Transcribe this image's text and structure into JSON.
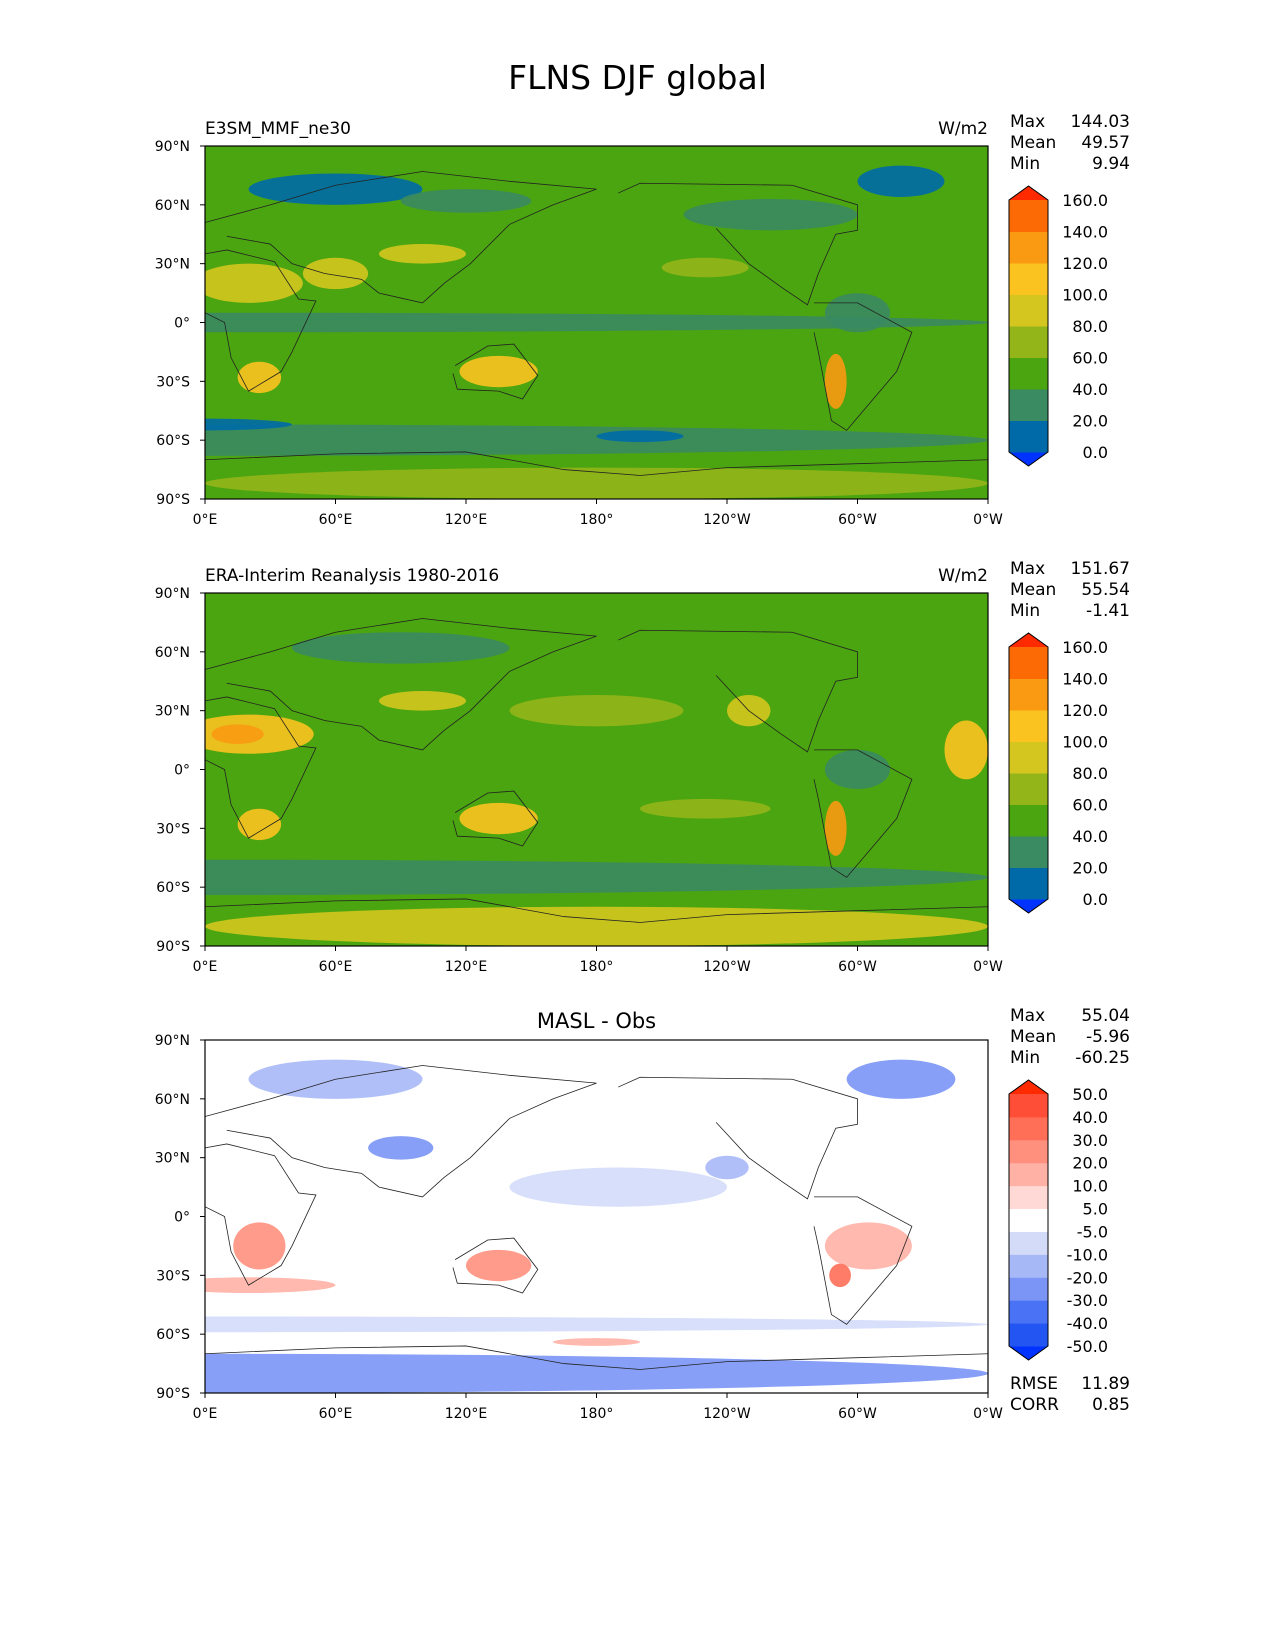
{
  "figure_title": "FLNS DJF global",
  "chart_data": [
    {
      "type": "heatmap",
      "subtitle_left": "E3SM_MMF_ne30",
      "subtitle_center": "",
      "units": "W/m2",
      "stats": [
        {
          "label": "Max",
          "value": "144.03"
        },
        {
          "label": "Mean",
          "value": "49.57"
        },
        {
          "label": "Min",
          "value": "9.94"
        }
      ],
      "levels": [
        "0.0",
        "20.0",
        "40.0",
        "60.0",
        "80.0",
        "100.0",
        "120.0",
        "140.0",
        "160.0"
      ],
      "colors": [
        "#0033ff",
        "#006aa8",
        "#3a8a62",
        "#4ba510",
        "#93b519",
        "#d4c61f",
        "#fbc31f",
        "#fa9a12",
        "#fb6a05",
        "#ff2a00"
      ],
      "base_color": "#4ba510",
      "xticks": [
        "0°E",
        "60°E",
        "120°E",
        "180°",
        "120°W",
        "60°W",
        "0°W"
      ],
      "yticks": [
        "90°N",
        "60°N",
        "30°N",
        "0°",
        "30°S",
        "60°S",
        "90°S"
      ],
      "footer": []
    },
    {
      "type": "heatmap",
      "subtitle_left": "ERA-Interim Reanalysis 1980-2016",
      "subtitle_center": "",
      "units": "W/m2",
      "stats": [
        {
          "label": "Max",
          "value": "151.67"
        },
        {
          "label": "Mean",
          "value": "55.54"
        },
        {
          "label": "Min",
          "value": "-1.41"
        }
      ],
      "levels": [
        "0.0",
        "20.0",
        "40.0",
        "60.0",
        "80.0",
        "100.0",
        "120.0",
        "140.0",
        "160.0"
      ],
      "colors": [
        "#0033ff",
        "#006aa8",
        "#3a8a62",
        "#4ba510",
        "#93b519",
        "#d4c61f",
        "#fbc31f",
        "#fa9a12",
        "#fb6a05",
        "#ff2a00"
      ],
      "base_color": "#4ba510",
      "xticks": [
        "0°E",
        "60°E",
        "120°E",
        "180°",
        "120°W",
        "60°W",
        "0°W"
      ],
      "yticks": [
        "90°N",
        "60°N",
        "30°N",
        "0°",
        "30°S",
        "60°S",
        "90°S"
      ],
      "footer": []
    },
    {
      "type": "heatmap",
      "subtitle_left": "",
      "subtitle_center": "MASL - Obs",
      "units": "",
      "stats": [
        {
          "label": "Max",
          "value": "55.04"
        },
        {
          "label": "Mean",
          "value": "-5.96"
        },
        {
          "label": "Min",
          "value": "-60.25"
        }
      ],
      "levels": [
        "-50.0",
        "-40.0",
        "-30.0",
        "-20.0",
        "-10.0",
        "-5.0",
        "5.0",
        "10.0",
        "20.0",
        "30.0",
        "40.0",
        "50.0"
      ],
      "colors": [
        "#0033ff",
        "#2255f2",
        "#4a72f5",
        "#7a95f5",
        "#a7b8f7",
        "#d3dbf9",
        "#ffffff",
        "#ffd9d6",
        "#ffb1a6",
        "#ff907d",
        "#ff6f58",
        "#ff4e37",
        "#ff2a00"
      ],
      "base_color": "#ffffff",
      "xticks": [
        "0°E",
        "60°E",
        "120°E",
        "180°",
        "120°W",
        "60°W",
        "0°W"
      ],
      "yticks": [
        "90°N",
        "60°N",
        "30°N",
        "0°",
        "30°S",
        "60°S",
        "90°S"
      ],
      "footer": [
        {
          "label": "RMSE",
          "value": "11.89"
        },
        {
          "label": "CORR",
          "value": "0.85"
        }
      ]
    }
  ]
}
